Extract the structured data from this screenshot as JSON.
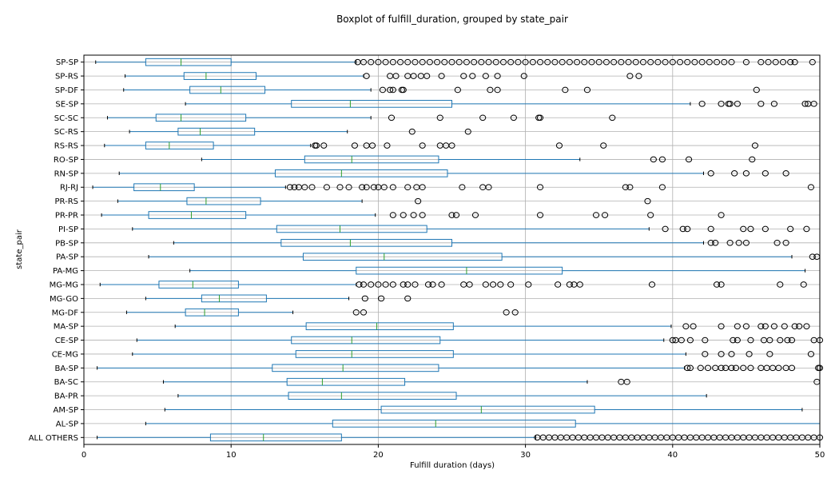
{
  "chart_data": {
    "type": "boxplot",
    "title": "Boxplot of fulfill_duration, grouped by state_pair",
    "xlabel": "Fulfill duration (days)",
    "ylabel": "state_pair",
    "xlim": [
      0,
      50
    ],
    "xticks": [
      0,
      10,
      20,
      30,
      40,
      50
    ],
    "grid": true,
    "box_color": "#1f77b4",
    "median_color": "#2ca02c",
    "categories": [
      "SP-SP",
      "SP-RS",
      "SP-DF",
      "SE-SP",
      "SC-SC",
      "SC-RS",
      "RS-RS",
      "RO-SP",
      "RN-SP",
      "RJ-RJ",
      "PR-RS",
      "PR-PR",
      "PI-SP",
      "PB-SP",
      "PA-SP",
      "PA-MG",
      "MG-MG",
      "MG-GO",
      "MG-DF",
      "MA-SP",
      "CE-SP",
      "CE-MG",
      "BA-SP",
      "BA-SC",
      "BA-PR",
      "AM-SP",
      "AL-SP",
      "ALL OTHERS"
    ],
    "boxes": [
      {
        "whislo": 0.8,
        "q1": 4.2,
        "med": 6.6,
        "q3": 10.0,
        "whishi": 18.5,
        "fliers": [
          18.6,
          19,
          19.5,
          20,
          20.5,
          21,
          21.5,
          22,
          22.5,
          23,
          23.5,
          24,
          24.5,
          25,
          25.5,
          26,
          26.5,
          27,
          27.5,
          28,
          28.5,
          29,
          29.5,
          30,
          30.5,
          31,
          31.5,
          32,
          32.5,
          33,
          33.5,
          34,
          34.5,
          35,
          35.5,
          36,
          36.5,
          37,
          37.5,
          38,
          38.5,
          39,
          39.5,
          40,
          40.5,
          41,
          41.5,
          42,
          42.5,
          43,
          43.5,
          44,
          45,
          46,
          46.5,
          47,
          47.5,
          48,
          48.3,
          49.5
        ]
      },
      {
        "whislo": 2.8,
        "q1": 6.8,
        "med": 8.3,
        "q3": 11.7,
        "whishi": 19.0,
        "fliers": [
          19.2,
          20.8,
          21.2,
          22,
          22.4,
          22.9,
          23.3,
          24.3,
          25.8,
          26.4,
          27.3,
          28.1,
          29.9,
          37.1,
          37.7
        ]
      },
      {
        "whislo": 2.7,
        "q1": 7.2,
        "med": 9.3,
        "q3": 12.3,
        "whishi": 19.5,
        "fliers": [
          20.3,
          20.8,
          21,
          21.6,
          21.7,
          25.4,
          27.6,
          28.1,
          32.7,
          34.2,
          45.7
        ]
      },
      {
        "whislo": 6.9,
        "q1": 14.1,
        "med": 18.1,
        "q3": 25.0,
        "whishi": 41.2,
        "fliers": [
          42,
          43.3,
          43.8,
          43.9,
          44.4,
          46,
          46.9,
          49,
          49.2,
          49.6
        ]
      },
      {
        "whislo": 1.6,
        "q1": 4.9,
        "med": 6.6,
        "q3": 11.0,
        "whishi": 19.5,
        "fliers": [
          20.9,
          24.2,
          27.1,
          29.2,
          30.9,
          31,
          35.9
        ]
      },
      {
        "whislo": 3.1,
        "q1": 6.4,
        "med": 7.9,
        "q3": 11.6,
        "whishi": 17.9,
        "fliers": [
          22.3,
          26.1
        ]
      },
      {
        "whislo": 1.4,
        "q1": 4.2,
        "med": 5.8,
        "q3": 8.8,
        "whishi": 15.4,
        "fliers": [
          15.7,
          15.8,
          16.3,
          18.4,
          19.2,
          19.6,
          20.6,
          23,
          24.2,
          24.6,
          25,
          32.3,
          35.3,
          45.6
        ]
      },
      {
        "whislo": 8.0,
        "q1": 15.0,
        "med": 18.2,
        "q3": 24.1,
        "whishi": 33.7,
        "fliers": [
          38.7,
          39.3,
          41.1,
          45.4
        ]
      },
      {
        "whislo": 2.4,
        "q1": 13.0,
        "med": 17.5,
        "q3": 24.7,
        "whishi": 42.1,
        "fliers": [
          42.6,
          44.2,
          45,
          46.3,
          47.7
        ]
      },
      {
        "whislo": 0.6,
        "q1": 3.4,
        "med": 5.2,
        "q3": 7.5,
        "whishi": 13.7,
        "fliers": [
          14,
          14.3,
          14.6,
          15,
          15.5,
          16.5,
          17.4,
          18,
          18.9,
          19.2,
          19.7,
          20,
          20.4,
          21,
          22,
          22.6,
          23,
          25.7,
          27.1,
          27.5,
          31,
          36.8,
          37.1,
          39.3,
          49.4
        ]
      },
      {
        "whislo": 2.3,
        "q1": 7.0,
        "med": 8.3,
        "q3": 12.0,
        "whishi": 18.9,
        "fliers": [
          22.7,
          38.3
        ]
      },
      {
        "whislo": 1.2,
        "q1": 4.4,
        "med": 7.3,
        "q3": 11.0,
        "whishi": 19.8,
        "fliers": [
          21,
          21.7,
          22.4,
          23,
          25,
          25.3,
          26.6,
          31,
          34.8,
          35.4,
          38.5,
          43.3
        ]
      },
      {
        "whislo": 3.3,
        "q1": 13.1,
        "med": 17.4,
        "q3": 23.3,
        "whishi": 38.4,
        "fliers": [
          39.5,
          40.7,
          41,
          42.6,
          44.8,
          45.3,
          46.3,
          48,
          49.1
        ]
      },
      {
        "whislo": 6.1,
        "q1": 13.4,
        "med": 18.1,
        "q3": 25.0,
        "whishi": 42.1,
        "fliers": [
          42.6,
          42.9,
          43.9,
          44.5,
          45,
          47.1,
          47.7
        ]
      },
      {
        "whislo": 4.4,
        "q1": 14.9,
        "med": 20.4,
        "q3": 28.4,
        "whishi": 48.1,
        "fliers": [
          49.5,
          49.8
        ]
      },
      {
        "whislo": 7.2,
        "q1": 18.5,
        "med": 26.0,
        "q3": 32.5,
        "whishi": 49.0,
        "fliers": []
      },
      {
        "whislo": 1.1,
        "q1": 5.1,
        "med": 7.4,
        "q3": 10.5,
        "whishi": 18.5,
        "fliers": [
          18.7,
          19,
          19.5,
          20,
          20.5,
          21,
          21.7,
          22,
          22.5,
          23.4,
          23.7,
          24.3,
          25.8,
          26.2,
          27.3,
          27.8,
          28.3,
          29,
          30.2,
          32.2,
          33,
          33.3,
          33.7,
          38.6,
          43,
          43.3,
          47.3,
          48.9
        ]
      },
      {
        "whislo": 4.2,
        "q1": 8.0,
        "med": 9.2,
        "q3": 12.4,
        "whishi": 18.0,
        "fliers": [
          19.1,
          20.2,
          22
        ]
      },
      {
        "whislo": 2.9,
        "q1": 6.9,
        "med": 8.2,
        "q3": 10.5,
        "whishi": 14.2,
        "fliers": [
          18.5,
          19,
          28.7,
          29.3
        ]
      },
      {
        "whislo": 6.2,
        "q1": 15.1,
        "med": 19.9,
        "q3": 25.1,
        "whishi": 39.9,
        "fliers": [
          40.9,
          41.4,
          43.3,
          44.4,
          45,
          46,
          46.3,
          46.9,
          47.6,
          48.3,
          48.6,
          49.1
        ]
      },
      {
        "whislo": 3.6,
        "q1": 14.1,
        "med": 18.2,
        "q3": 24.2,
        "whishi": 39.4,
        "fliers": [
          40,
          40.2,
          40.6,
          41.2,
          42.2,
          44.1,
          44.4,
          45.3,
          46.2,
          46.6,
          47.3,
          47.8,
          48.1,
          49.6,
          50
        ]
      },
      {
        "whislo": 3.3,
        "q1": 14.4,
        "med": 18.2,
        "q3": 25.1,
        "whishi": 40.9,
        "fliers": [
          42.2,
          43.3,
          44,
          45.2,
          46.6,
          49.4
        ]
      },
      {
        "whislo": 0.9,
        "q1": 12.8,
        "med": 17.6,
        "q3": 24.1,
        "whishi": 40.8,
        "fliers": [
          41,
          41.2,
          41.9,
          42.4,
          42.9,
          43.3,
          43.6,
          44,
          44.3,
          44.8,
          45.3,
          46,
          46.4,
          46.8,
          47.2,
          47.7,
          48.1,
          49.9,
          50
        ]
      },
      {
        "whislo": 5.4,
        "q1": 13.8,
        "med": 16.2,
        "q3": 21.8,
        "whishi": 34.2,
        "fliers": [
          36.5,
          36.9,
          49.8
        ]
      },
      {
        "whislo": 6.4,
        "q1": 13.9,
        "med": 17.5,
        "q3": 25.3,
        "whishi": 42.3,
        "fliers": []
      },
      {
        "whislo": 5.5,
        "q1": 20.2,
        "med": 27.0,
        "q3": 34.7,
        "whishi": 48.8,
        "fliers": []
      },
      {
        "whislo": 4.2,
        "q1": 16.9,
        "med": 23.9,
        "q3": 33.4,
        "whishi": 50.0,
        "fliers": []
      },
      {
        "whislo": 0.9,
        "q1": 8.6,
        "med": 12.2,
        "q3": 17.5,
        "whishi": 30.7,
        "fliers": [
          30.8,
          31.2,
          31.6,
          32,
          32.4,
          32.8,
          33.2,
          33.6,
          34,
          34.4,
          34.8,
          35.2,
          35.6,
          36,
          36.4,
          36.8,
          37.2,
          37.6,
          38,
          38.4,
          38.8,
          39.2,
          39.6,
          40,
          40.4,
          40.8,
          41.2,
          41.6,
          42,
          42.4,
          42.8,
          43.2,
          43.6,
          44,
          44.4,
          44.8,
          45.2,
          45.6,
          46,
          46.4,
          46.8,
          47.2,
          47.6,
          48,
          48.4,
          48.8,
          49.2,
          49.6,
          50
        ]
      }
    ]
  }
}
